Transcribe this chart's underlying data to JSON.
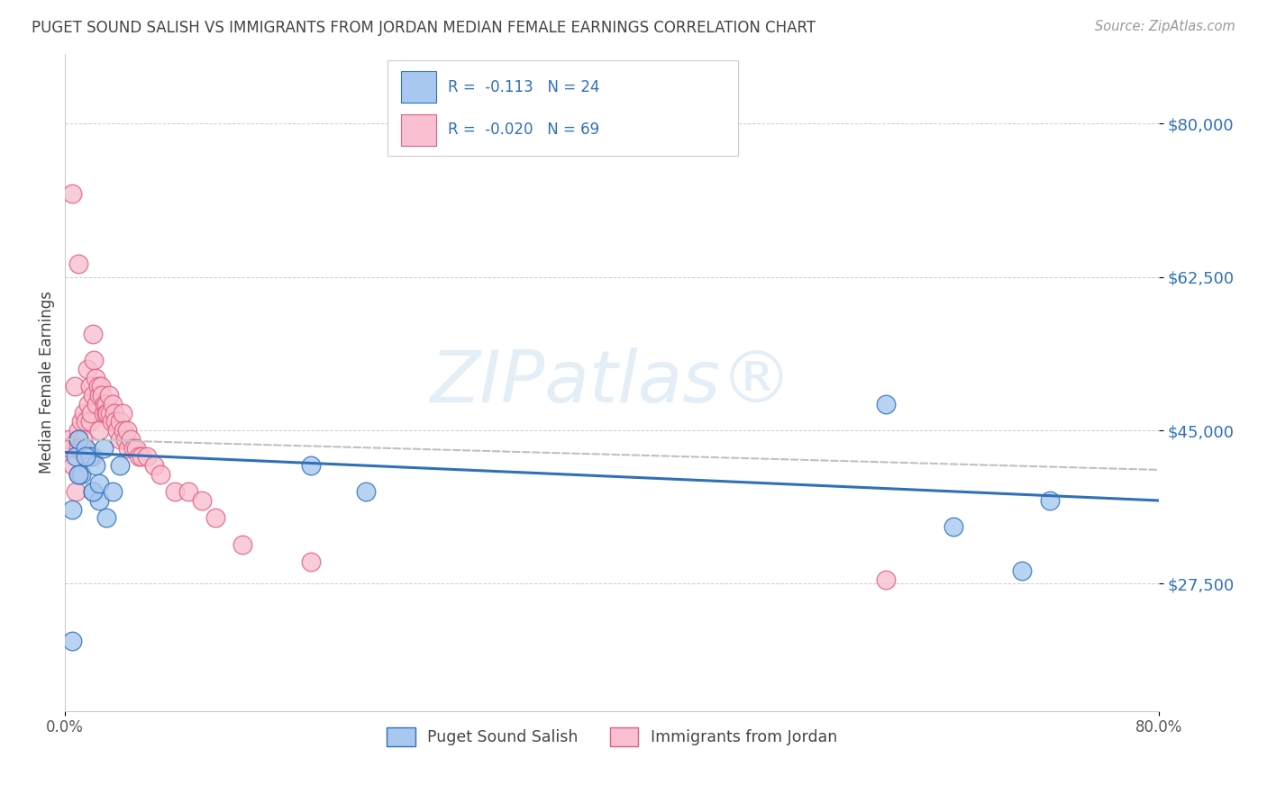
{
  "title": "PUGET SOUND SALISH VS IMMIGRANTS FROM JORDAN MEDIAN FEMALE EARNINGS CORRELATION CHART",
  "source": "Source: ZipAtlas.com",
  "ylabel": "Median Female Earnings",
  "xlim": [
    0.0,
    0.8
  ],
  "ylim": [
    13000,
    88000
  ],
  "yticks": [
    27500,
    45000,
    62500,
    80000
  ],
  "ytick_labels": [
    "$27,500",
    "$45,000",
    "$62,500",
    "$80,000"
  ],
  "background_color": "#ffffff",
  "grid_color": "#cccccc",
  "series1_name": "Puget Sound Salish",
  "series2_name": "Immigrants from Jordan",
  "series1_color": "#3070b8",
  "series2_color": "#e06080",
  "series1_fill": "#a8c8f0",
  "series2_fill": "#f8c0d0",
  "legend_R1": "R =  -0.113",
  "legend_N1": "N = 24",
  "legend_R2": "R =  -0.020",
  "legend_N2": "N = 69",
  "series1_x": [
    0.005,
    0.008,
    0.01,
    0.012,
    0.015,
    0.018,
    0.02,
    0.022,
    0.025,
    0.028,
    0.005,
    0.01,
    0.015,
    0.02,
    0.025,
    0.03,
    0.035,
    0.04,
    0.18,
    0.22,
    0.6,
    0.65,
    0.7,
    0.72
  ],
  "series1_y": [
    21000,
    42000,
    44000,
    40000,
    43000,
    42000,
    38000,
    41000,
    37000,
    43000,
    36000,
    40000,
    42000,
    38000,
    39000,
    35000,
    38000,
    41000,
    41000,
    38000,
    48000,
    34000,
    29000,
    37000
  ],
  "series2_x": [
    0.003,
    0.004,
    0.005,
    0.006,
    0.007,
    0.008,
    0.009,
    0.01,
    0.01,
    0.01,
    0.01,
    0.01,
    0.012,
    0.012,
    0.013,
    0.014,
    0.015,
    0.015,
    0.015,
    0.016,
    0.017,
    0.018,
    0.018,
    0.019,
    0.02,
    0.02,
    0.02,
    0.021,
    0.022,
    0.023,
    0.024,
    0.025,
    0.025,
    0.026,
    0.027,
    0.028,
    0.029,
    0.03,
    0.03,
    0.031,
    0.032,
    0.033,
    0.034,
    0.035,
    0.036,
    0.037,
    0.038,
    0.04,
    0.04,
    0.042,
    0.043,
    0.044,
    0.045,
    0.046,
    0.048,
    0.05,
    0.052,
    0.054,
    0.056,
    0.06,
    0.065,
    0.07,
    0.08,
    0.09,
    0.1,
    0.11,
    0.13,
    0.18,
    0.6
  ],
  "series2_y": [
    44000,
    43000,
    72000,
    41000,
    50000,
    38000,
    44000,
    45000,
    44000,
    43000,
    64000,
    40000,
    46000,
    43000,
    44000,
    47000,
    46000,
    43000,
    42000,
    52000,
    48000,
    50000,
    46000,
    47000,
    56000,
    49000,
    42000,
    53000,
    51000,
    48000,
    50000,
    49000,
    45000,
    50000,
    49000,
    47000,
    48000,
    48000,
    47000,
    47000,
    49000,
    47000,
    46000,
    48000,
    47000,
    46000,
    45000,
    46000,
    44000,
    47000,
    45000,
    44000,
    45000,
    43000,
    44000,
    43000,
    43000,
    42000,
    42000,
    42000,
    41000,
    40000,
    38000,
    38000,
    37000,
    35000,
    32000,
    30000,
    28000
  ]
}
